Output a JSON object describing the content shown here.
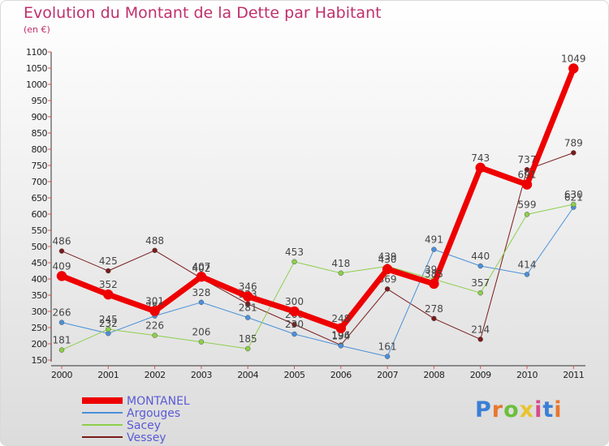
{
  "title": "Evolution du Montant de la Dette par Habitant",
  "subtitle": "(en €)",
  "logo": {
    "text": "Proxiti",
    "letter_colors": [
      "#3a7fd5",
      "#e8772e",
      "#6cbf3c",
      "#e8c42e",
      "#d94a8c",
      "#3a7fd5",
      "#e8772e"
    ]
  },
  "colors": {
    "title": "#c0306b",
    "legend_text": "#5a5ad6",
    "axis": "#333333",
    "grid_marks": "#e05050"
  },
  "chart_data": {
    "type": "line",
    "title": "Evolution du Montant de la Dette par Habitant",
    "ylabel": "(en €)",
    "xlabel": "",
    "ylim": [
      150,
      1100
    ],
    "ytick_step": 50,
    "x": [
      "2000",
      "2001",
      "2002",
      "2003",
      "2004",
      "2005",
      "2006",
      "2007",
      "2008",
      "2009",
      "2010",
      "2011"
    ],
    "legend_position": "bottom-left",
    "series": [
      {
        "name": "Vessey",
        "color": "#7a1a1a",
        "width": 1,
        "values": [
          486,
          425,
          488,
          402,
          323,
          260,
          196,
          369,
          278,
          214,
          737,
          789
        ],
        "labels": [
          "486",
          "425",
          "488",
          "402",
          "323",
          "260",
          "196",
          "369",
          "278",
          "214",
          "737",
          "789"
        ]
      },
      {
        "name": "Argouges",
        "color": "#4a90d9",
        "width": 1,
        "values": [
          266,
          232,
          286,
          328,
          281,
          230,
          194,
          161,
          491,
          440,
          414,
          621
        ],
        "labels": [
          "266",
          "232",
          "286",
          "328",
          "281",
          "230",
          "194",
          "161",
          "491",
          "440",
          "414",
          "621"
        ]
      },
      {
        "name": "Sacey",
        "color": "#8ccf4a",
        "width": 1,
        "values": [
          181,
          245,
          226,
          206,
          185,
          453,
          418,
          439,
          399,
          357,
          599,
          630
        ],
        "labels": [
          "181",
          "245",
          "226",
          "206",
          "185",
          "453",
          "418",
          "439",
          "399",
          "357",
          "599",
          "630"
        ]
      },
      {
        "name": "MONTANEL",
        "color": "#ee0000",
        "width": 7,
        "values": [
          409,
          352,
          301,
          407,
          346,
          300,
          248,
          430,
          385,
          743,
          691,
          1049
        ],
        "labels": [
          "409",
          "352",
          "301",
          "407",
          "346",
          "300",
          "248",
          "430",
          "385",
          "743",
          "691",
          "1049"
        ]
      }
    ],
    "legend_order": [
      "MONTANEL",
      "Argouges",
      "Sacey",
      "Vessey"
    ]
  }
}
